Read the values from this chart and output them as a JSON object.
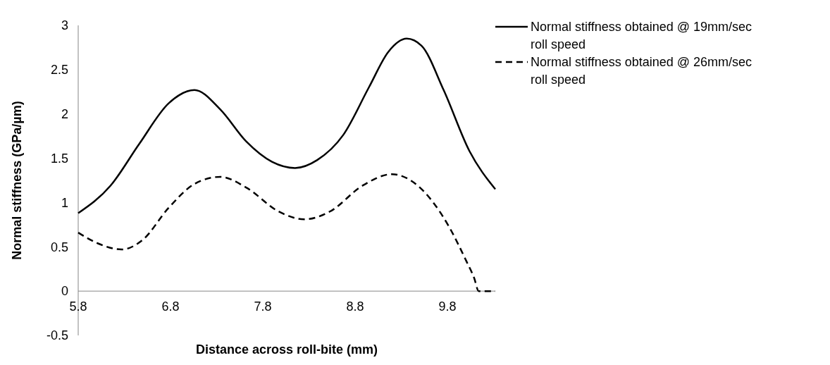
{
  "chart_data": {
    "type": "line",
    "xlabel": "Distance across roll-bite (mm)",
    "ylabel": "Normal stiffness (GPa/µm)",
    "xlim": [
      5.8,
      10.32
    ],
    "xticks": [
      5.8,
      6.8,
      7.8,
      8.8,
      9.8
    ],
    "ylim": [
      -0.5,
      3
    ],
    "yticks": [
      -0.5,
      0,
      0.5,
      1,
      1.5,
      2,
      2.5,
      3
    ],
    "grid": false,
    "legend": "top right",
    "series": [
      {
        "name": "Normal stiffness obtained @ 19mm/sec roll speed",
        "color": "#000000",
        "line_style": "solid",
        "x": [
          5.8,
          6.15,
          6.46,
          6.78,
          7.06,
          7.34,
          7.62,
          7.9,
          8.15,
          8.39,
          8.67,
          8.95,
          9.16,
          9.36,
          9.52,
          9.76,
          10.04,
          10.32
        ],
        "values": [
          0.88,
          1.19,
          1.66,
          2.12,
          2.27,
          2.05,
          1.69,
          1.46,
          1.39,
          1.48,
          1.76,
          2.3,
          2.7,
          2.85,
          2.77,
          2.27,
          1.58,
          1.15
        ]
      },
      {
        "name": "Normal stiffness obtained @ 26mm/sec roll speed",
        "color": "#000000",
        "line_style": "dashed",
        "x": [
          5.8,
          6.01,
          6.27,
          6.5,
          6.78,
          7.06,
          7.34,
          7.62,
          7.97,
          8.25,
          8.53,
          8.88,
          9.2,
          9.48,
          9.8,
          10.01,
          10.09,
          10.14,
          10.32
        ],
        "values": [
          0.66,
          0.54,
          0.47,
          0.58,
          0.94,
          1.21,
          1.29,
          1.17,
          0.9,
          0.81,
          0.9,
          1.19,
          1.32,
          1.19,
          0.76,
          0.33,
          0.15,
          0,
          0
        ]
      }
    ]
  }
}
